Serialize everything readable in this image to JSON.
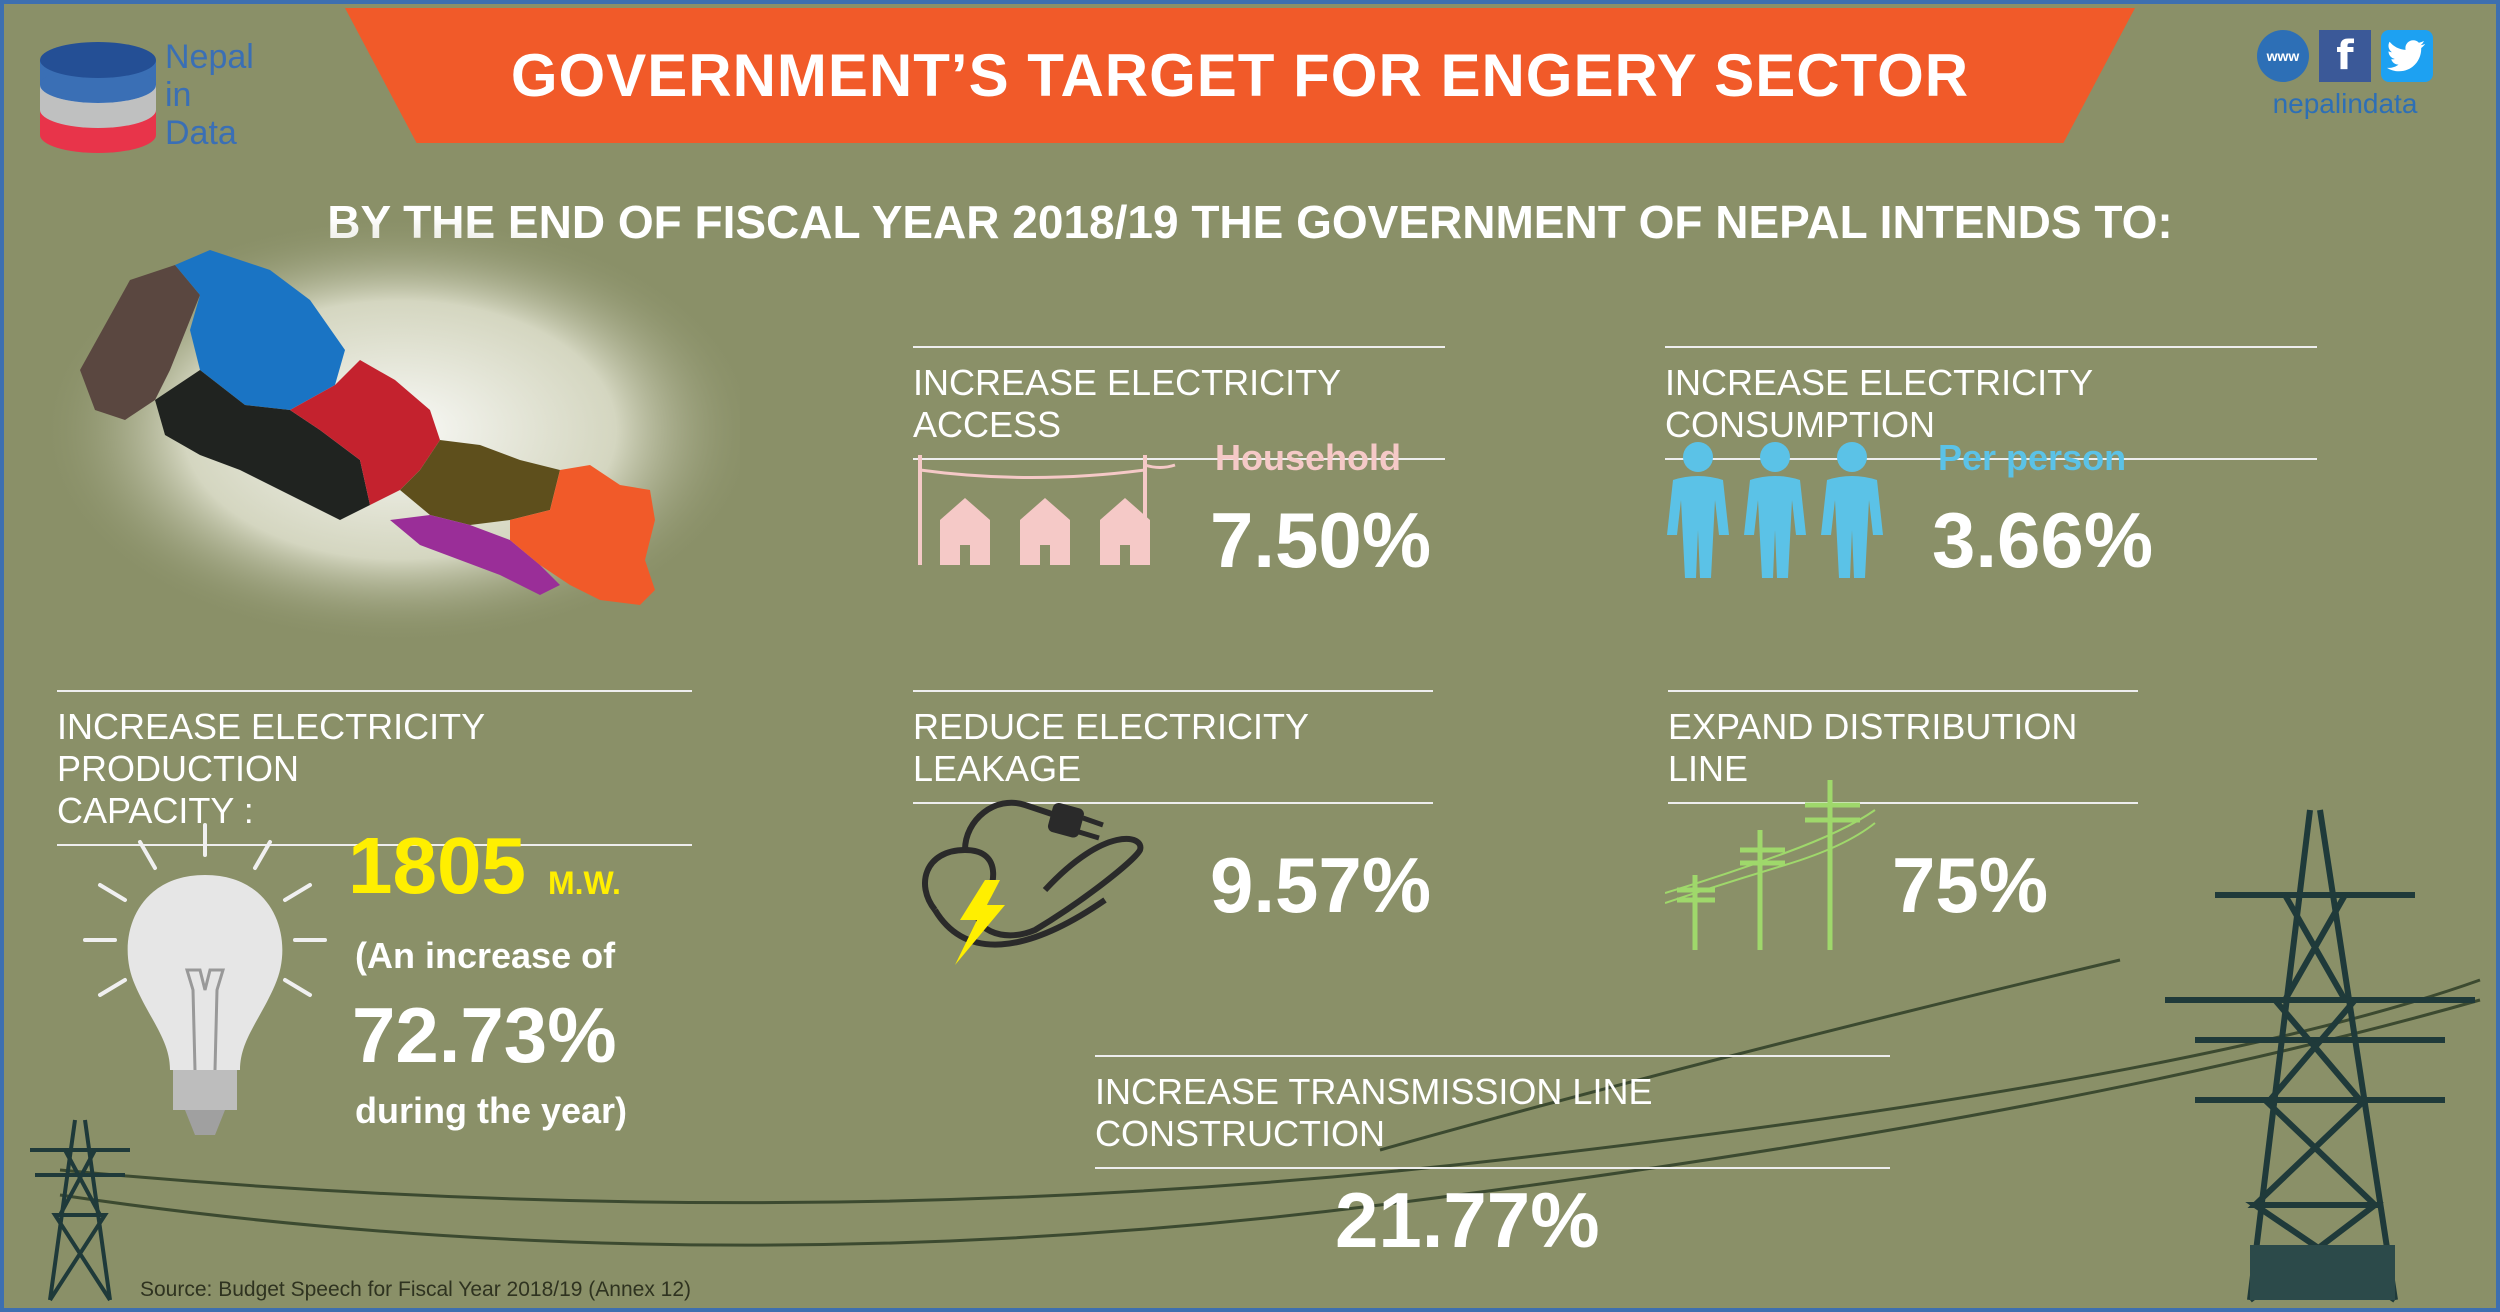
{
  "brand": {
    "logo_line1": "Nepal",
    "logo_line2": "in",
    "logo_line3": "Data",
    "social_handle": "nepalindata",
    "web_icon_text": "www"
  },
  "title": "GOVERNMENT’S TARGET FOR ENGERY SECTOR",
  "intro": "BY THE END OF FISCAL YEAR 2018/19 THE GOVERNMENT OF NEPAL INTENDS TO:",
  "targets": {
    "access": {
      "heading": "INCREASE ELECTRICITY ACCESS",
      "sub": "Household",
      "value": "7.50%"
    },
    "consumption": {
      "heading": "INCREASE ELECTRICITY CONSUMPTION",
      "sub": "Per person",
      "value": "3.66%"
    },
    "production": {
      "heading_line1": "INCREASE ELECTRICITY PRODUCTION",
      "heading_line2": "CAPACITY :",
      "value": "1805",
      "unit": "M.W.",
      "note1": "(An increase of",
      "pct": "72.73%",
      "note2": "during the year)"
    },
    "leakage": {
      "heading": "REDUCE ELECTRICITY LEAKAGE",
      "value": "9.57%"
    },
    "distribution": {
      "heading": "EXPAND DISTRIBUTION LINE",
      "value": "75%"
    },
    "transmission": {
      "heading": "INCREASE TRANSMISSION LINE CONSTRUCTION",
      "value": "21.77%"
    }
  },
  "source": "Source: Budget Speech for Fiscal Year 2018/19 (Annex 12)",
  "colors": {
    "background": "#8a9068",
    "banner": "#f15a29",
    "accent_yellow": "#ffef00",
    "house_pink": "#f5c9c7",
    "person_blue": "#5bc2e7",
    "pole_green": "#9fd86b"
  },
  "icons": [
    "nepal-map-icon",
    "house-icon",
    "person-icon",
    "light-bulb-icon",
    "plug-icon",
    "utility-pole-icon",
    "transmission-tower-icon",
    "globe-icon",
    "facebook-icon",
    "twitter-icon"
  ]
}
